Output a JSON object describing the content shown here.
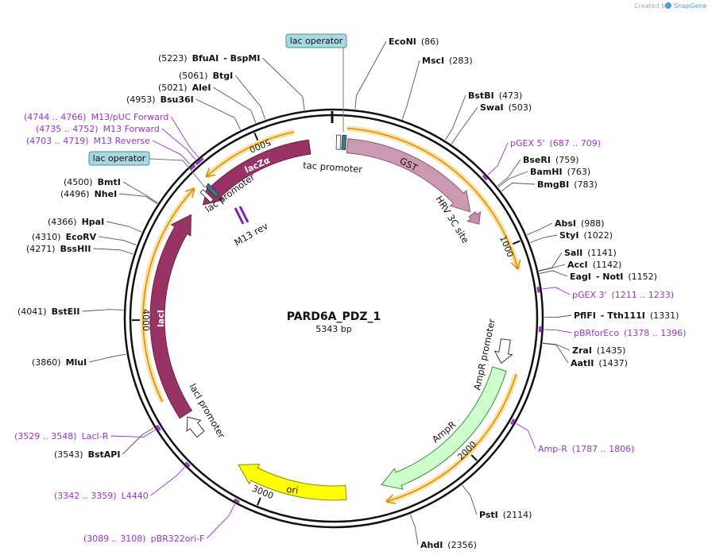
{
  "branding": {
    "prefix": "Created by",
    "brand": "SnapGene"
  },
  "map": {
    "name": "PARD6A_PDZ_1",
    "length": "5343 bp",
    "ticks": [
      "1000",
      "2000",
      "3000",
      "4000",
      "5000"
    ]
  },
  "boxes": [
    "lac operator",
    "lac operator"
  ],
  "features": [
    "tac promoter",
    "GST",
    "HRV 3C site",
    "lacZα",
    "lac promoter",
    "M13 rev",
    "lacI",
    "lacI promoter",
    "AmpR promoter",
    "AmpR",
    "ori"
  ],
  "enzymes": [
    {
      "name": "EcoNI",
      "position": "(86)"
    },
    {
      "name": "MscI",
      "position": "(283)"
    },
    {
      "name": "BstBI",
      "position": "(473)"
    },
    {
      "name": "SwaI",
      "position": "(503)"
    },
    {
      "name": "BseRI",
      "position": "(759)"
    },
    {
      "name": "BamHI",
      "position": "(763)"
    },
    {
      "name": "BmgBI",
      "position": "(783)"
    },
    {
      "name": "AbsI",
      "position": "(988)"
    },
    {
      "name": "StyI",
      "position": "(1022)"
    },
    {
      "name": "SalI",
      "position": "(1141)"
    },
    {
      "name": "AccI",
      "position": "(1142)"
    },
    {
      "name": "EagI",
      "partner": "- NotI",
      "position": "(1152)"
    },
    {
      "name": "PflFI",
      "partner": "- Tth111I",
      "position": "(1331)"
    },
    {
      "name": "ZraI",
      "position": "(1435)"
    },
    {
      "name": "AatII",
      "position": "(1437)"
    },
    {
      "name": "PstI",
      "position": "(2114)"
    },
    {
      "name": "AhdI",
      "position": "(2356)"
    },
    {
      "name": "BstAPI",
      "position": "(3543)"
    },
    {
      "name": "MluI",
      "position": "(3860)"
    },
    {
      "name": "BstEII",
      "position": "(4041)"
    },
    {
      "name": "BssHII",
      "position": "(4271)"
    },
    {
      "name": "EcoRV",
      "position": "(4310)"
    },
    {
      "name": "HpaI",
      "position": "(4366)"
    },
    {
      "name": "NheI",
      "position": "(4496)"
    },
    {
      "name": "BmtI",
      "position": "(4500)"
    },
    {
      "name": "Bsu36I",
      "position": "(4953)"
    },
    {
      "name": "AleI",
      "position": "(5021)"
    },
    {
      "name": "BtgI",
      "position": "(5061)"
    },
    {
      "name": "BfuAI",
      "partner": "- BspMI",
      "position": "(5223)"
    }
  ],
  "primers": [
    {
      "name": "M13/pUC Forward",
      "range": "(4744 .. 4766)"
    },
    {
      "name": "M13 Forward",
      "range": "(4735 .. 4752)"
    },
    {
      "name": "M13 Reverse",
      "range": "(4703 .. 4719)"
    },
    {
      "name": "pGEX 5'",
      "range": "(687 .. 709)"
    },
    {
      "name": "pGEX 3'",
      "range": "(1211 .. 1233)"
    },
    {
      "name": "pBRforEco",
      "range": "(1378 .. 1396)"
    },
    {
      "name": "Amp-R",
      "range": "(1787 .. 1806)"
    },
    {
      "name": "LacI-R",
      "range": "(3529 .. 3548)"
    },
    {
      "name": "L4440",
      "range": "(3342 .. 3359)"
    },
    {
      "name": "pBR322ori-F",
      "range": "(3089 .. 3108)"
    }
  ]
}
